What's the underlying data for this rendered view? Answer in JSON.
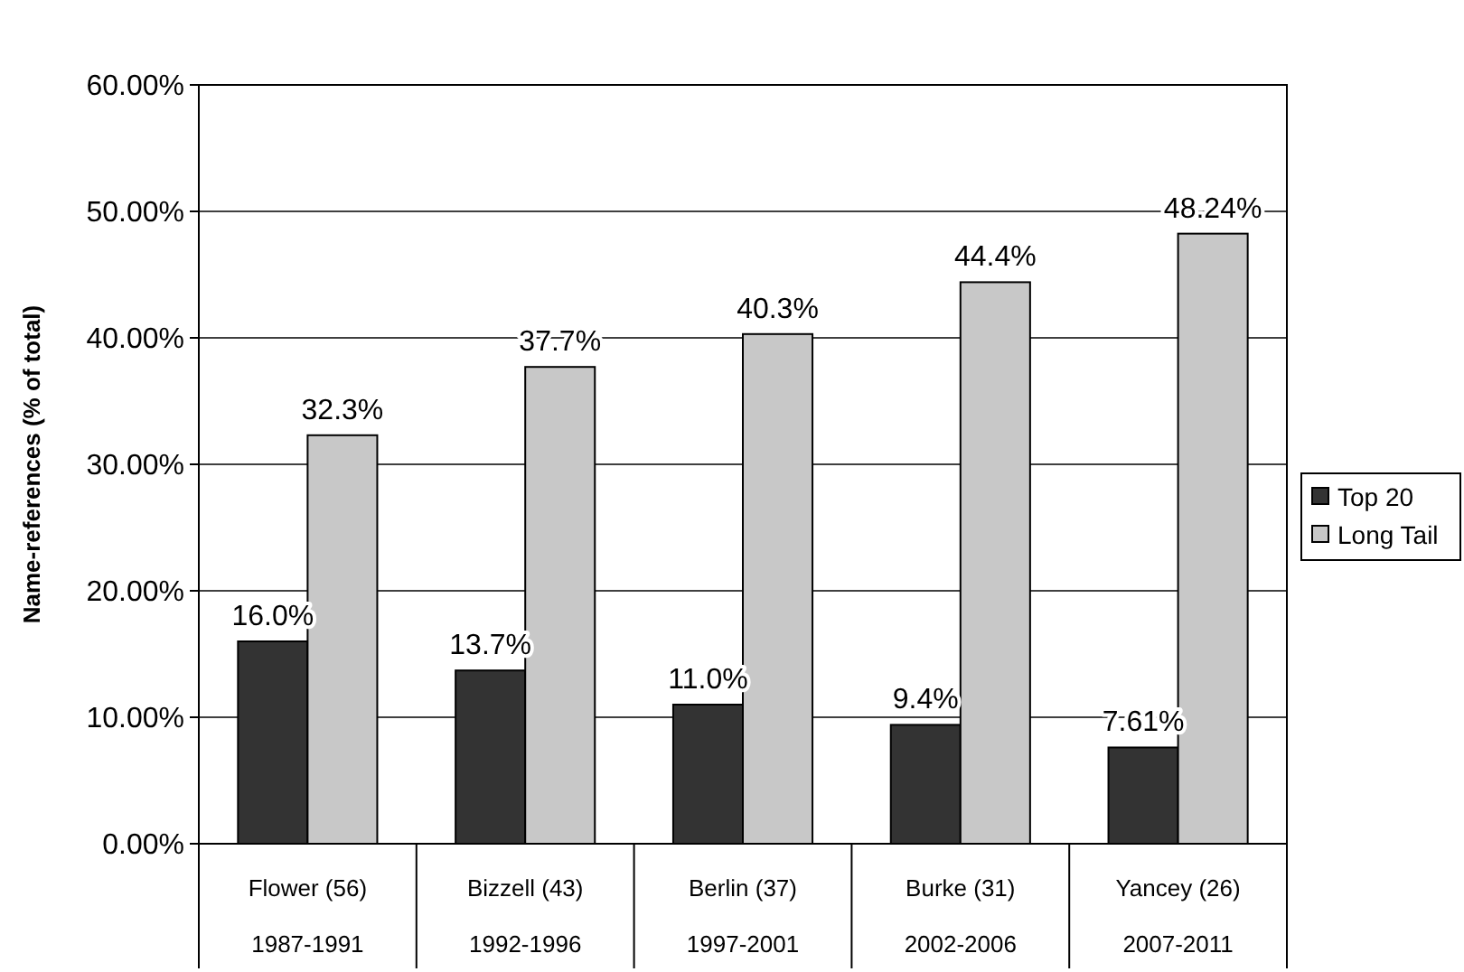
{
  "chart_data": {
    "type": "bar",
    "ylabel": "Name-references (% of total)",
    "categories": [
      "Flower (56)\n1987-1991",
      "Bizzell (43)\n1992-1996",
      "Berlin (37)\n1997-2001",
      "Burke (31)\n2002-2006",
      "Yancey (26)\n2007-2011"
    ],
    "series": [
      {
        "name": "Top 20",
        "color": "#333333",
        "values": [
          16.0,
          13.7,
          11.0,
          9.4,
          7.61
        ],
        "value_labels": [
          "16.0%",
          "13.7%",
          "11.0%",
          "9.4%",
          "7.61%"
        ]
      },
      {
        "name": "Long Tail",
        "color": "#c8c8c8",
        "values": [
          32.3,
          37.7,
          40.3,
          44.4,
          48.24
        ],
        "value_labels": [
          "32.3%",
          "37.7%",
          "40.3%",
          "44.4%",
          "48.24%"
        ]
      }
    ],
    "ylim": [
      0,
      60
    ],
    "yticks": [
      {
        "value": 0,
        "label": "0.00%"
      },
      {
        "value": 10,
        "label": "10.00%"
      },
      {
        "value": 20,
        "label": "20.00%"
      },
      {
        "value": 30,
        "label": "30.00%"
      },
      {
        "value": 40,
        "label": "40.00%"
      },
      {
        "value": 50,
        "label": "50.00%"
      },
      {
        "value": 60,
        "label": "60.00%"
      }
    ],
    "grid": "y",
    "legend": "right"
  }
}
